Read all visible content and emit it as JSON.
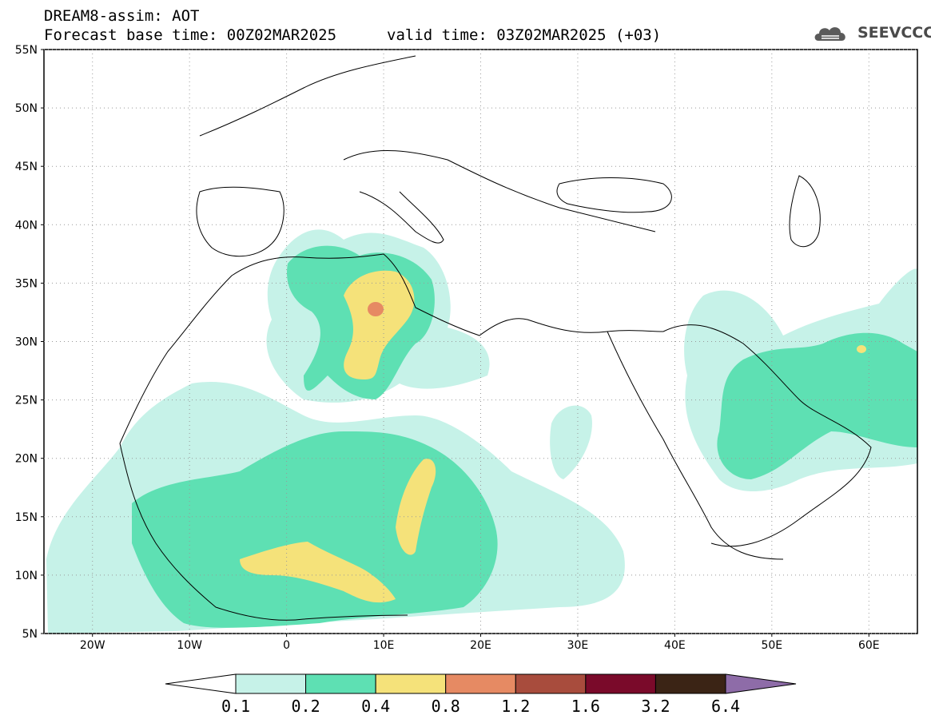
{
  "header": {
    "title": "DREAM8-assim: AOT",
    "base_time": "Forecast base time: 00Z02MAR2025",
    "valid_time": "valid time: 03Z02MAR2025 (+03)",
    "logo_text": "SEEVCCC"
  },
  "map": {
    "region": "North Africa, Middle East and Europe",
    "lon_range": [
      -25,
      65
    ],
    "lat_range": [
      5,
      55
    ],
    "lat_labels": [
      "55N",
      "50N",
      "45N",
      "40N",
      "35N",
      "30N",
      "25N",
      "20N",
      "15N",
      "10N",
      "5N"
    ],
    "lon_labels": [
      "20W",
      "10W",
      "0",
      "10E",
      "20E",
      "30E",
      "40E",
      "50E",
      "60E"
    ],
    "grid": "dotted"
  },
  "colorbar": {
    "labels": [
      "0.1",
      "0.2",
      "0.4",
      "0.8",
      "1.2",
      "1.6",
      "3.2",
      "6.4"
    ],
    "colors": [
      "#ffffff",
      "#c6f2e8",
      "#5ee0b3",
      "#f5e27a",
      "#e68a63",
      "#a84c3d",
      "#7a0a2a",
      "#3b2415",
      "#8e6ca8"
    ]
  }
}
